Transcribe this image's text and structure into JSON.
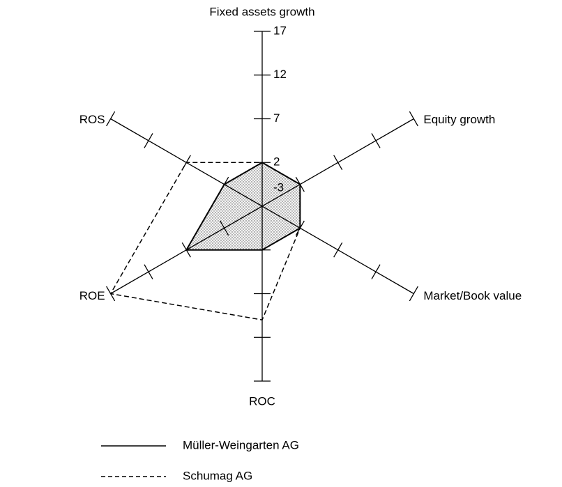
{
  "chart_data": {
    "type": "radar",
    "categories": [
      "Fixed assets growth",
      "Equity growth",
      "Market/Book value",
      "ROC",
      "ROE",
      "ROS"
    ],
    "series": [
      {
        "name": "Müller-Weingarten AG",
        "color": "#000000",
        "dash": "solid",
        "filled": true,
        "values": [
          2,
          2,
          2,
          2,
          7,
          2
        ]
      },
      {
        "name": "Schumag AG",
        "color": "#000000",
        "dash": "dashed",
        "filled": false,
        "values": [
          2,
          2,
          2,
          10,
          17,
          7
        ]
      }
    ],
    "rlim": [
      -3,
      17
    ],
    "rticks": [
      -3,
      2,
      7,
      12,
      17
    ]
  }
}
